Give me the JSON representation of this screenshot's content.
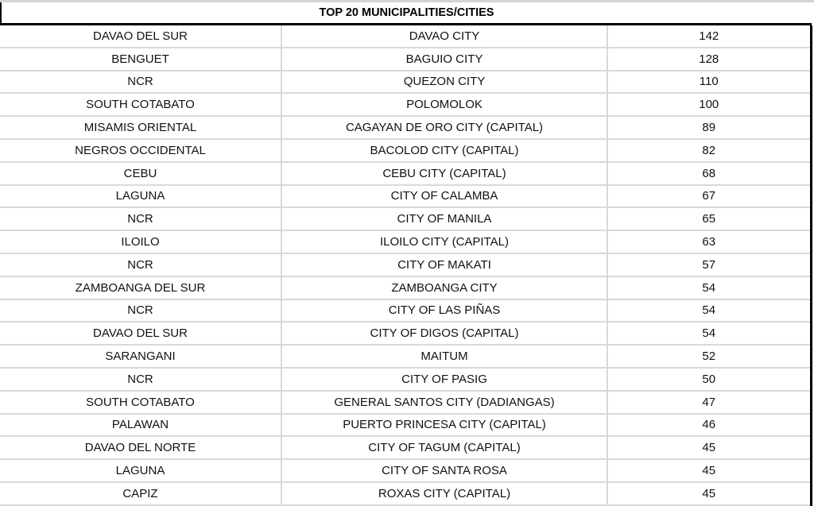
{
  "title": "TOP 20  MUNICIPALITIES/CITIES",
  "rows": [
    [
      "DAVAO DEL SUR",
      "DAVAO CITY",
      "142"
    ],
    [
      "BENGUET",
      "BAGUIO CITY",
      "128"
    ],
    [
      "NCR",
      "QUEZON CITY",
      "110"
    ],
    [
      "SOUTH COTABATO",
      "POLOMOLOK",
      "100"
    ],
    [
      "MISAMIS ORIENTAL",
      "CAGAYAN DE ORO CITY (CAPITAL)",
      "89"
    ],
    [
      "NEGROS OCCIDENTAL",
      "BACOLOD CITY (CAPITAL)",
      "82"
    ],
    [
      "CEBU",
      "CEBU CITY (CAPITAL)",
      "68"
    ],
    [
      "LAGUNA",
      "CITY OF CALAMBA",
      "67"
    ],
    [
      "NCR",
      "CITY OF MANILA",
      "65"
    ],
    [
      "ILOILO",
      "ILOILO CITY (CAPITAL)",
      "63"
    ],
    [
      "NCR",
      "CITY OF MAKATI",
      "57"
    ],
    [
      "ZAMBOANGA DEL SUR",
      "ZAMBOANGA CITY",
      "54"
    ],
    [
      "NCR",
      "CITY OF LAS PIÑAS",
      "54"
    ],
    [
      "DAVAO DEL SUR",
      "CITY OF DIGOS (CAPITAL)",
      "54"
    ],
    [
      "SARANGANI",
      "MAITUM",
      "52"
    ],
    [
      "NCR",
      "CITY OF PASIG",
      "50"
    ],
    [
      "SOUTH COTABATO",
      "GENERAL SANTOS CITY (DADIANGAS)",
      "47"
    ],
    [
      "PALAWAN",
      "PUERTO PRINCESA CITY (CAPITAL)",
      "46"
    ],
    [
      "DAVAO DEL NORTE",
      "CITY OF TAGUM (CAPITAL)",
      "45"
    ],
    [
      "LAGUNA",
      "CITY OF SANTA ROSA",
      "45"
    ],
    [
      "CAPIZ",
      "ROXAS CITY (CAPITAL)",
      "45"
    ]
  ]
}
